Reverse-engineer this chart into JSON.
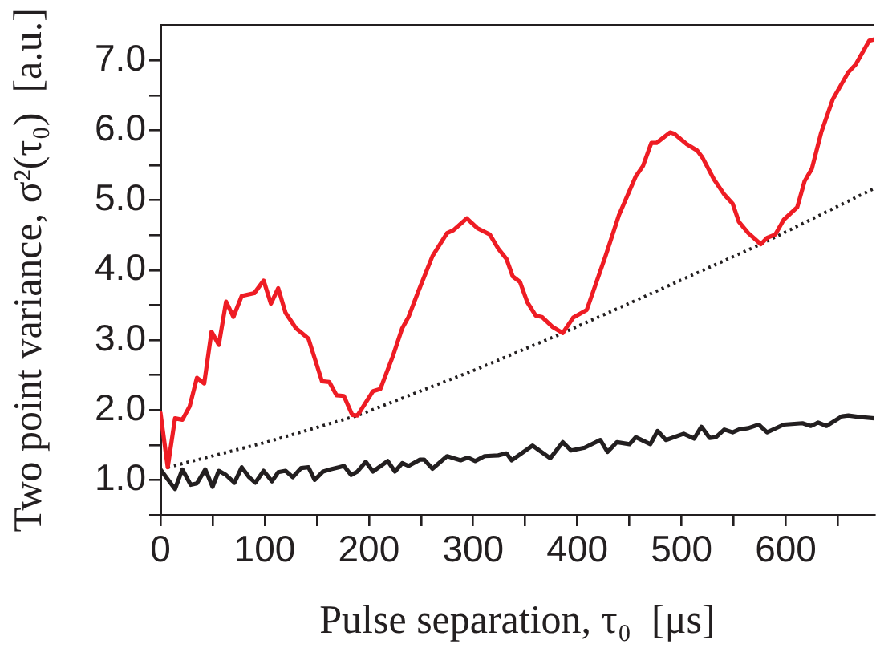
{
  "chart_data": {
    "type": "line",
    "xlabel": "Pulse separation, τ₀  [μs]",
    "ylabel": "Two point variance, σ²(τ₀)  [a.u.]",
    "xlim": [
      0,
      685
    ],
    "ylim": [
      0.5,
      7.5
    ],
    "xticks": [
      0,
      {
        "value": 50,
        "label": null
      },
      100,
      {
        "value": 150,
        "label": null
      },
      200,
      {
        "value": 250,
        "label": null
      },
      300,
      {
        "value": 350,
        "label": null
      },
      400,
      {
        "value": 450,
        "label": null
      },
      500,
      {
        "value": 550,
        "label": null
      },
      600,
      {
        "value": 650,
        "label": null
      }
    ],
    "yticks": [
      {
        "value": 0.5,
        "label": null
      },
      {
        "value": 1,
        "label": "1.0"
      },
      {
        "value": 1.5,
        "label": null
      },
      {
        "value": 2,
        "label": "2.0"
      },
      {
        "value": 2.5,
        "label": null
      },
      {
        "value": 3,
        "label": "3.0"
      },
      {
        "value": 3.5,
        "label": null
      },
      {
        "value": 4,
        "label": "4.0"
      },
      {
        "value": 4.5,
        "label": null
      },
      {
        "value": 5,
        "label": "5.0"
      },
      {
        "value": 5.5,
        "label": null
      },
      {
        "value": 6,
        "label": "6.0"
      },
      {
        "value": 6.5,
        "label": null
      },
      {
        "value": 7,
        "label": "7.0"
      }
    ],
    "marker": "none",
    "legend": false,
    "series": [
      {
        "color": "#ee1c24",
        "line_style": "solid",
        "x": [
          0,
          7,
          14,
          21,
          28,
          35,
          42,
          49,
          56,
          63,
          70,
          78,
          90,
          99,
          106,
          113,
          120,
          130,
          142,
          155,
          162,
          169,
          176,
          184,
          189,
          204,
          211,
          223,
          232,
          238,
          247,
          261,
          275,
          281,
          294,
          304,
          316,
          324,
          332,
          338,
          345,
          352,
          360,
          366,
          376,
          386,
          396,
          409,
          427,
          440,
          456,
          463,
          471,
          476,
          489,
          493,
          505,
          515,
          520,
          531,
          541,
          549,
          555,
          564,
          576,
          582,
          590,
          598,
          611,
          618,
          625,
          634,
          645,
          660,
          667,
          680,
          685
        ],
        "values": [
          1.96,
          1.18,
          1.88,
          1.86,
          2.05,
          2.46,
          2.38,
          3.12,
          2.93,
          3.55,
          3.33,
          3.63,
          3.67,
          3.85,
          3.52,
          3.74,
          3.39,
          3.17,
          3.02,
          2.41,
          2.4,
          2.21,
          2.2,
          1.93,
          1.92,
          2.27,
          2.3,
          2.77,
          3.17,
          3.33,
          3.68,
          4.2,
          4.53,
          4.57,
          4.74,
          4.6,
          4.51,
          4.31,
          4.16,
          3.91,
          3.83,
          3.54,
          3.35,
          3.33,
          3.19,
          3.1,
          3.32,
          3.43,
          4.2,
          4.79,
          5.34,
          5.49,
          5.82,
          5.82,
          5.97,
          5.95,
          5.8,
          5.71,
          5.61,
          5.3,
          5.08,
          4.95,
          4.69,
          4.53,
          4.37,
          4.46,
          4.51,
          4.72,
          4.9,
          5.27,
          5.45,
          5.97,
          6.44,
          6.83,
          6.94,
          7.28,
          7.3
        ]
      },
      {
        "color": "#231f20",
        "line_style": "dotted",
        "x": [
          7,
          102,
          189,
          303,
          386,
          476,
          576,
          685
        ],
        "values": [
          1.18,
          1.54,
          1.92,
          2.58,
          3.1,
          3.7,
          4.37,
          5.17
        ]
      },
      {
        "color": "#231f20",
        "line_style": "solid",
        "x": [
          0,
          14,
          21,
          29,
          35,
          43,
          50,
          56,
          63,
          71,
          78,
          85,
          91,
          99,
          107,
          113,
          120,
          127,
          135,
          142,
          148,
          156,
          163,
          171,
          176,
          183,
          189,
          197,
          204,
          218,
          225,
          232,
          238,
          249,
          253,
          261,
          275,
          288,
          295,
          302,
          311,
          324,
          332,
          337,
          357,
          374,
          386,
          394,
          407,
          422,
          429,
          438,
          450,
          456,
          470,
          477,
          485,
          502,
          512,
          519,
          527,
          533,
          541,
          549,
          555,
          564,
          574,
          582,
          598,
          616,
          624,
          631,
          639,
          654,
          660,
          670,
          685
        ],
        "values": [
          1.15,
          0.87,
          1.15,
          0.93,
          0.95,
          1.15,
          0.9,
          1.13,
          1.07,
          0.96,
          1.18,
          1.04,
          0.96,
          1.13,
          0.98,
          1.11,
          1.13,
          1.04,
          1.17,
          1.18,
          1,
          1.12,
          1.15,
          1.18,
          1.2,
          1.07,
          1.12,
          1.26,
          1.12,
          1.27,
          1.12,
          1.24,
          1.2,
          1.29,
          1.29,
          1.16,
          1.34,
          1.28,
          1.32,
          1.27,
          1.34,
          1.35,
          1.38,
          1.28,
          1.49,
          1.31,
          1.54,
          1.42,
          1.46,
          1.57,
          1.4,
          1.54,
          1.51,
          1.61,
          1.51,
          1.7,
          1.57,
          1.66,
          1.59,
          1.76,
          1.6,
          1.61,
          1.72,
          1.68,
          1.72,
          1.74,
          1.79,
          1.68,
          1.79,
          1.81,
          1.77,
          1.82,
          1.77,
          1.91,
          1.92,
          1.9,
          1.88
        ]
      }
    ]
  }
}
